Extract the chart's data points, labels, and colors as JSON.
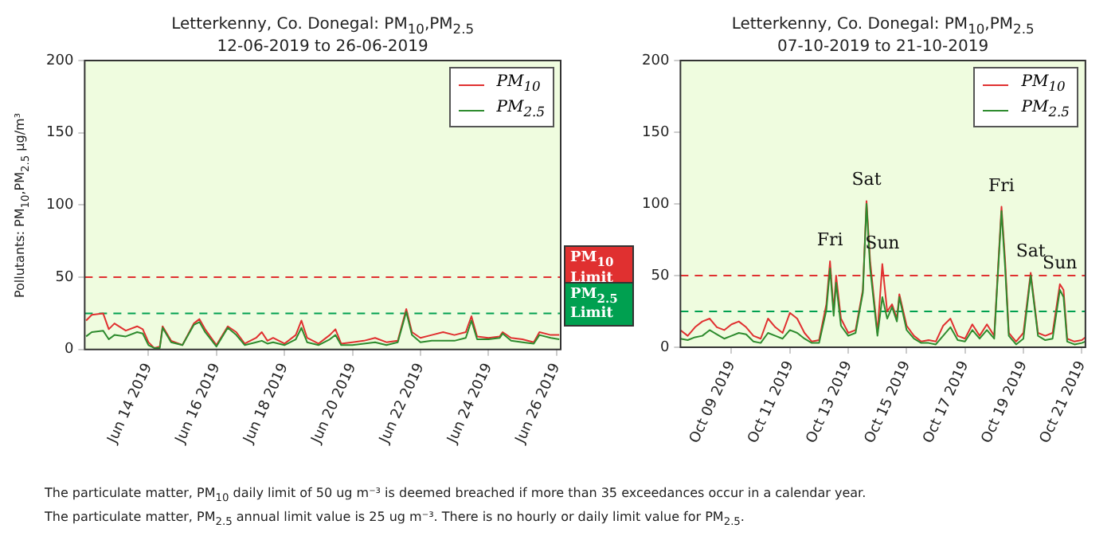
{
  "chart_data": [
    {
      "type": "line",
      "title": "Letterkenny, Co. Donegal: PM$_{10}$,PM$_{2.5}$",
      "subtitle": "12-06-2019 to 26-06-2019",
      "ylabel": "Pollutants: PM$_{10}$,PM$_{2.5}$ µg/m³",
      "x": [
        "2019-06-12T04:00",
        "2019-06-12T08:00",
        "2019-06-12T16:00",
        "2019-06-12T20:00",
        "2019-06-13T00:00",
        "2019-06-13T08:00",
        "2019-06-13T16:00",
        "2019-06-13T20:00",
        "2019-06-14T00:00",
        "2019-06-14T04:00",
        "2019-06-14T08:00",
        "2019-06-14T10:00",
        "2019-06-14T16:00",
        "2019-06-15T00:00",
        "2019-06-15T08:00",
        "2019-06-15T12:00",
        "2019-06-15T16:00",
        "2019-06-16T00:00",
        "2019-06-16T08:00",
        "2019-06-16T14:00",
        "2019-06-16T20:00",
        "2019-06-17T04:00",
        "2019-06-17T08:00",
        "2019-06-17T12:00",
        "2019-06-17T16:00",
        "2019-06-18T00:00",
        "2019-06-18T08:00",
        "2019-06-18T12:00",
        "2019-06-18T16:00",
        "2019-06-19T00:00",
        "2019-06-19T08:00",
        "2019-06-19T12:00",
        "2019-06-19T16:00",
        "2019-06-20T00:00",
        "2019-06-20T08:00",
        "2019-06-20T16:00",
        "2019-06-21T00:00",
        "2019-06-21T08:00",
        "2019-06-21T14:00",
        "2019-06-21T18:00",
        "2019-06-22T00:00",
        "2019-06-22T08:00",
        "2019-06-22T16:00",
        "2019-06-23T00:00",
        "2019-06-23T08:00",
        "2019-06-23T12:00",
        "2019-06-23T16:00",
        "2019-06-24T00:00",
        "2019-06-24T08:00",
        "2019-06-24T10:00",
        "2019-06-24T16:00",
        "2019-06-25T00:00",
        "2019-06-25T08:00",
        "2019-06-25T12:00",
        "2019-06-25T20:00",
        "2019-06-26T02:00"
      ],
      "series": [
        {
          "name": "PM$_{10}$",
          "color": "#e03030",
          "values": [
            20,
            24,
            25,
            14,
            18,
            13,
            16,
            14,
            5,
            1,
            2,
            16,
            6,
            3,
            18,
            21,
            14,
            3,
            16,
            12,
            4,
            8,
            12,
            6,
            8,
            4,
            10,
            20,
            8,
            4,
            10,
            14,
            4,
            5,
            6,
            8,
            5,
            6,
            28,
            12,
            8,
            10,
            12,
            10,
            12,
            23,
            9,
            8,
            9,
            12,
            8,
            7,
            5,
            12,
            10,
            10
          ]
        },
        {
          "name": "PM$_{2.5}$",
          "color": "#2e8b2e",
          "values": [
            9,
            12,
            13,
            7,
            10,
            9,
            12,
            11,
            3,
            1,
            1,
            15,
            5,
            3,
            17,
            19,
            12,
            2,
            15,
            10,
            3,
            5,
            6,
            4,
            5,
            3,
            7,
            15,
            5,
            3,
            7,
            10,
            3,
            3,
            4,
            5,
            3,
            5,
            26,
            10,
            5,
            6,
            6,
            6,
            8,
            20,
            7,
            7,
            8,
            11,
            6,
            5,
            4,
            10,
            8,
            7
          ]
        }
      ],
      "xlim": [
        "2019-06-12T03:00",
        "2019-06-26T03:00"
      ],
      "xticks": [
        {
          "value": "2019-06-14",
          "label": "Jun 14 2019"
        },
        {
          "value": "2019-06-16",
          "label": "Jun 16 2019"
        },
        {
          "value": "2019-06-18",
          "label": "Jun 18 2019"
        },
        {
          "value": "2019-06-20",
          "label": "Jun 20 2019"
        },
        {
          "value": "2019-06-22",
          "label": "Jun 22 2019"
        },
        {
          "value": "2019-06-24",
          "label": "Jun 24 2019"
        },
        {
          "value": "2019-06-26",
          "label": "Jun 26 2019"
        }
      ],
      "ylim": [
        0,
        200
      ],
      "yticks": [
        0,
        50,
        100,
        150,
        200
      ],
      "ref_lines": [
        {
          "axis": "y",
          "value": 50,
          "label": "PM$_{10}$ Limit",
          "color": "#e03030",
          "line_style": "dashed"
        },
        {
          "axis": "y",
          "value": 25,
          "label": "PM$_{2.5}$ Limit",
          "color": "#00a050",
          "line_style": "dashed"
        }
      ],
      "legend": "top right",
      "grid": false,
      "marker": "none",
      "line_style": "solid",
      "annotations": [
        "The particulate matter, PM$_{10}$ daily limit of 50 ug m⁻³ is deemed breached if more than 35 exceedances occur in a calendar year.",
        "The particulate matter, PM$_{2.5}$ annual limit value is 25 ug m⁻³. There is no hourly or daily limit value for PM$_{2.5}$."
      ]
    },
    {
      "type": "line",
      "title": "Letterkenny, Co. Donegal: PM$_{10}$,PM$_{2.5}$",
      "subtitle": "07-10-2019 to 21-10-2019",
      "x": [
        "2019-10-07T06:00",
        "2019-10-07T12:00",
        "2019-10-07T18:00",
        "2019-10-08T00:00",
        "2019-10-08T06:00",
        "2019-10-08T12:00",
        "2019-10-08T18:00",
        "2019-10-09T00:00",
        "2019-10-09T06:00",
        "2019-10-09T12:00",
        "2019-10-09T18:00",
        "2019-10-10T00:00",
        "2019-10-10T06:00",
        "2019-10-10T12:00",
        "2019-10-10T18:00",
        "2019-10-11T00:00",
        "2019-10-11T06:00",
        "2019-10-11T12:00",
        "2019-10-11T18:00",
        "2019-10-12T00:00",
        "2019-10-12T06:00",
        "2019-10-12T09:00",
        "2019-10-12T12:00",
        "2019-10-12T14:00",
        "2019-10-12T18:00",
        "2019-10-13T00:00",
        "2019-10-13T06:00",
        "2019-10-13T12:00",
        "2019-10-13T15:00",
        "2019-10-13T18:00",
        "2019-10-14T00:00",
        "2019-10-14T04:00",
        "2019-10-14T08:00",
        "2019-10-14T12:00",
        "2019-10-14T16:00",
        "2019-10-14T18:00",
        "2019-10-15T00:00",
        "2019-10-15T06:00",
        "2019-10-15T12:00",
        "2019-10-15T18:00",
        "2019-10-16T00:00",
        "2019-10-16T06:00",
        "2019-10-16T12:00",
        "2019-10-16T18:00",
        "2019-10-17T00:00",
        "2019-10-17T06:00",
        "2019-10-17T12:00",
        "2019-10-17T18:00",
        "2019-10-18T00:00",
        "2019-10-18T06:00",
        "2019-10-18T09:00",
        "2019-10-18T12:00",
        "2019-10-18T18:00",
        "2019-10-19T00:00",
        "2019-10-19T06:00",
        "2019-10-19T12:00",
        "2019-10-19T18:00",
        "2019-10-20T00:00",
        "2019-10-20T06:00",
        "2019-10-20T09:00",
        "2019-10-20T12:00",
        "2019-10-20T18:00",
        "2019-10-21T00:00",
        "2019-10-21T03:00"
      ],
      "series": [
        {
          "name": "PM$_{10}$",
          "color": "#e03030",
          "values": [
            12,
            8,
            14,
            18,
            20,
            14,
            12,
            16,
            18,
            14,
            8,
            6,
            20,
            14,
            10,
            24,
            20,
            10,
            4,
            5,
            30,
            60,
            25,
            50,
            20,
            10,
            12,
            40,
            102,
            60,
            10,
            58,
            25,
            30,
            20,
            37,
            15,
            8,
            4,
            5,
            4,
            15,
            20,
            8,
            6,
            16,
            8,
            16,
            8,
            98,
            60,
            10,
            4,
            10,
            52,
            10,
            8,
            10,
            44,
            40,
            6,
            4,
            5,
            7
          ]
        },
        {
          "name": "PM$_{2.5}$",
          "color": "#2e8b2e",
          "values": [
            6,
            5,
            7,
            8,
            12,
            9,
            6,
            8,
            10,
            9,
            4,
            3,
            10,
            8,
            6,
            12,
            10,
            6,
            3,
            3,
            26,
            55,
            22,
            45,
            15,
            8,
            10,
            38,
            100,
            55,
            8,
            35,
            20,
            28,
            18,
            35,
            12,
            6,
            3,
            3,
            2,
            8,
            14,
            5,
            4,
            12,
            6,
            12,
            6,
            95,
            55,
            8,
            2,
            6,
            50,
            8,
            5,
            6,
            40,
            35,
            4,
            2,
            3,
            4
          ]
        }
      ],
      "xlim": [
        "2019-10-07T06:00",
        "2019-10-21T03:00"
      ],
      "xticks": [
        {
          "value": "2019-10-09",
          "label": "Oct 09 2019"
        },
        {
          "value": "2019-10-11",
          "label": "Oct 11 2019"
        },
        {
          "value": "2019-10-13",
          "label": "Oct 13 2019"
        },
        {
          "value": "2019-10-15",
          "label": "Oct 15 2019"
        },
        {
          "value": "2019-10-17",
          "label": "Oct 17 2019"
        },
        {
          "value": "2019-10-19",
          "label": "Oct 19 2019"
        },
        {
          "value": "2019-10-21",
          "label": "Oct 21 2019"
        }
      ],
      "ylim": [
        0,
        200
      ],
      "yticks": [
        0,
        50,
        100,
        150,
        200
      ],
      "ref_lines": [
        {
          "axis": "y",
          "value": 50,
          "color": "#e03030",
          "line_style": "dashed"
        },
        {
          "axis": "y",
          "value": 25,
          "color": "#00a050",
          "line_style": "dashed"
        }
      ],
      "legend": "top right",
      "grid": false,
      "marker": "none",
      "line_style": "solid",
      "annotations": [
        {
          "text": "Fri",
          "x": "2019-10-12T09:00",
          "y": 60
        },
        {
          "text": "Sat",
          "x": "2019-10-13T15:00",
          "y": 102
        },
        {
          "text": "Sun",
          "x": "2019-10-14T04:00",
          "y": 58
        },
        {
          "text": "Fri",
          "x": "2019-10-18T06:00",
          "y": 98
        },
        {
          "text": "Sat",
          "x": "2019-10-19T06:00",
          "y": 52
        },
        {
          "text": "Sun",
          "x": "2019-10-20T06:00",
          "y": 44
        }
      ]
    }
  ]
}
